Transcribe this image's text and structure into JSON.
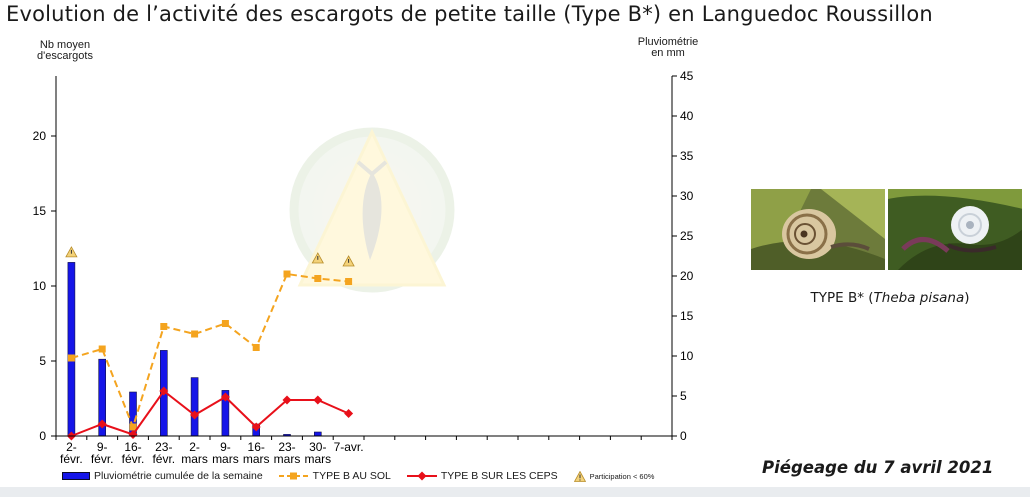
{
  "page": {
    "title": "Evolution de l’activité des escargots de petite taille (Type B*) en Languedoc Roussillon",
    "photo_caption_prefix": "TYPE B* (",
    "photo_caption_species": "Theba pisana",
    "photo_caption_suffix": ")",
    "trap_date": "Piégeage du 7 avril 2021"
  },
  "chart_data": {
    "type": "bar",
    "categories": [
      "2-\nfévr.",
      "9-\nfévr.",
      "16-\nfévr.",
      "23-\nfévr.",
      "2-\nmars",
      "9-\nmars",
      "16-\nmars",
      "23-\nmars",
      "30-\nmars",
      "7-avr."
    ],
    "left_axis": {
      "title": "Nb moyen\nd'escargots",
      "ylim": [
        0,
        24
      ],
      "ticks": [
        0,
        5,
        10,
        15,
        20
      ]
    },
    "right_axis": {
      "title": "Pluviométrie\nen mm",
      "ylim": [
        0,
        45
      ],
      "ticks": [
        0,
        5,
        10,
        15,
        20,
        25,
        30,
        35,
        40,
        45
      ]
    },
    "slots": 20,
    "series": [
      {
        "name": "Pluviométrie cumulée de la semaine",
        "type": "bar",
        "axis": "right",
        "color": "#1515e8",
        "values": [
          21.7,
          9.6,
          5.5,
          10.7,
          7.3,
          5.7,
          1.5,
          0.2,
          0.5,
          null
        ]
      },
      {
        "name": "TYPE B AU SOL",
        "type": "line",
        "axis": "left",
        "style": "dashed",
        "color": "#f4a41f",
        "values": [
          5.2,
          5.8,
          0.6,
          7.3,
          6.8,
          7.5,
          5.9,
          10.8,
          10.5,
          10.3
        ]
      },
      {
        "name": "TYPE B SUR LES CEPS",
        "type": "line",
        "axis": "left",
        "style": "solid",
        "color": "#e8101a",
        "values": [
          0.0,
          0.8,
          0.1,
          3.0,
          1.4,
          2.6,
          0.6,
          2.4,
          2.4,
          1.5
        ]
      }
    ],
    "participation_warnings": [
      0,
      8,
      9
    ],
    "warning_legend": "Participation < 60%"
  }
}
